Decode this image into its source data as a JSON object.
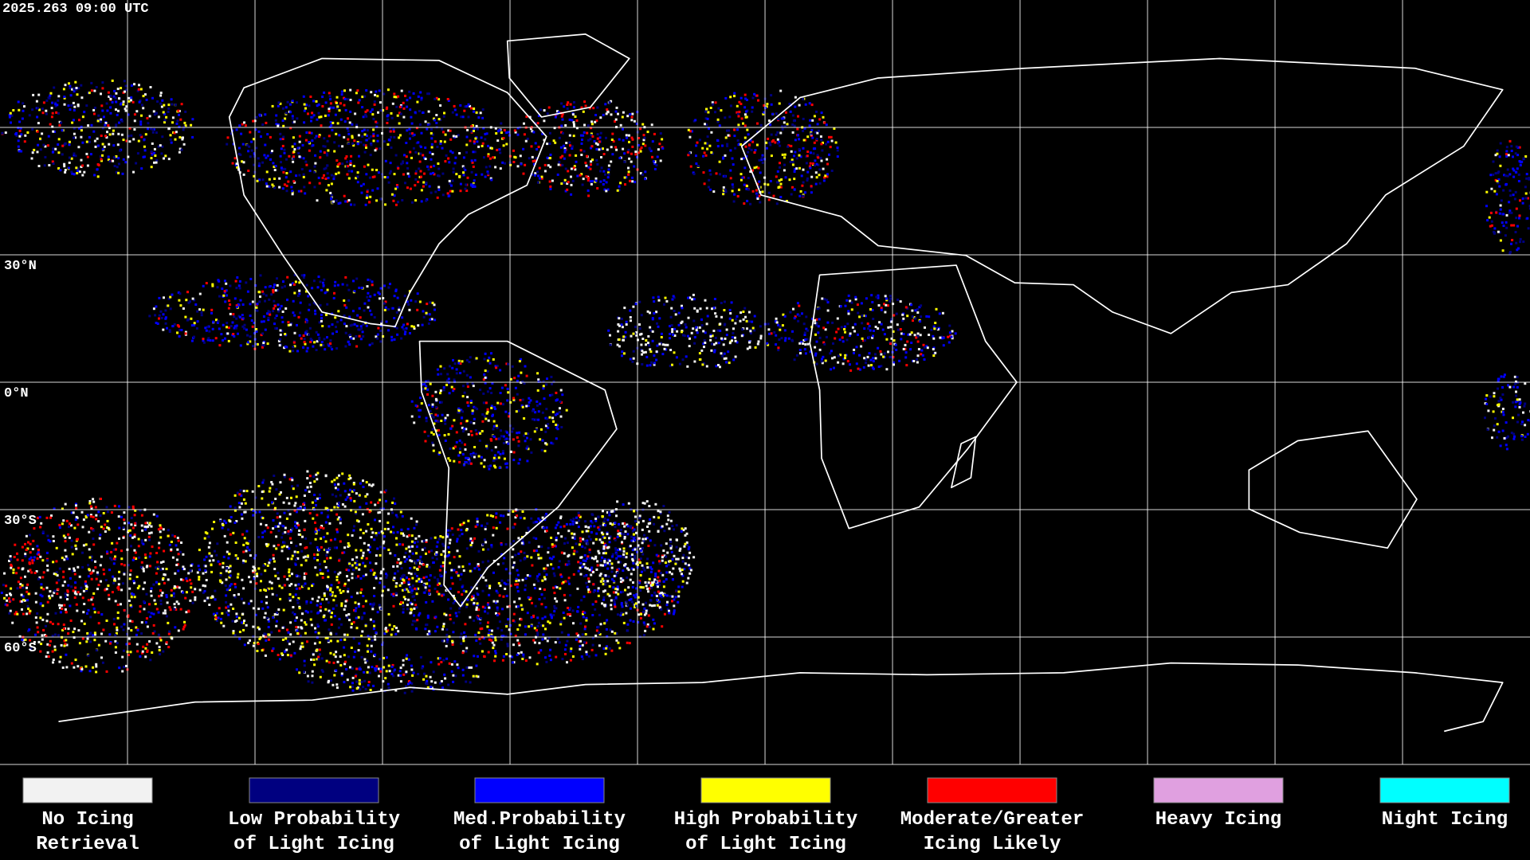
{
  "timestamp": "2025.263 09:00 UTC",
  "lat_labels": [
    "30°N",
    "0°N",
    "30°S",
    "60°S"
  ],
  "legend": [
    {
      "label": [
        "No Icing",
        "Retrieval"
      ],
      "color": "#f2f2f2"
    },
    {
      "label": [
        "Low Probability",
        "of Light Icing"
      ],
      "color": "#000080"
    },
    {
      "label": [
        "Med.Probability",
        "of Light Icing"
      ],
      "color": "#0000ff"
    },
    {
      "label": [
        "High Probability",
        "of Light Icing"
      ],
      "color": "#ffff00"
    },
    {
      "label": [
        "Moderate/Greater",
        "Icing Likely"
      ],
      "color": "#ff0000"
    },
    {
      "label": [
        "Heavy Icing"
      ],
      "color": "#e0a0e0"
    },
    {
      "label": [
        "Night Icing"
      ],
      "color": "#00ffff"
    }
  ]
}
